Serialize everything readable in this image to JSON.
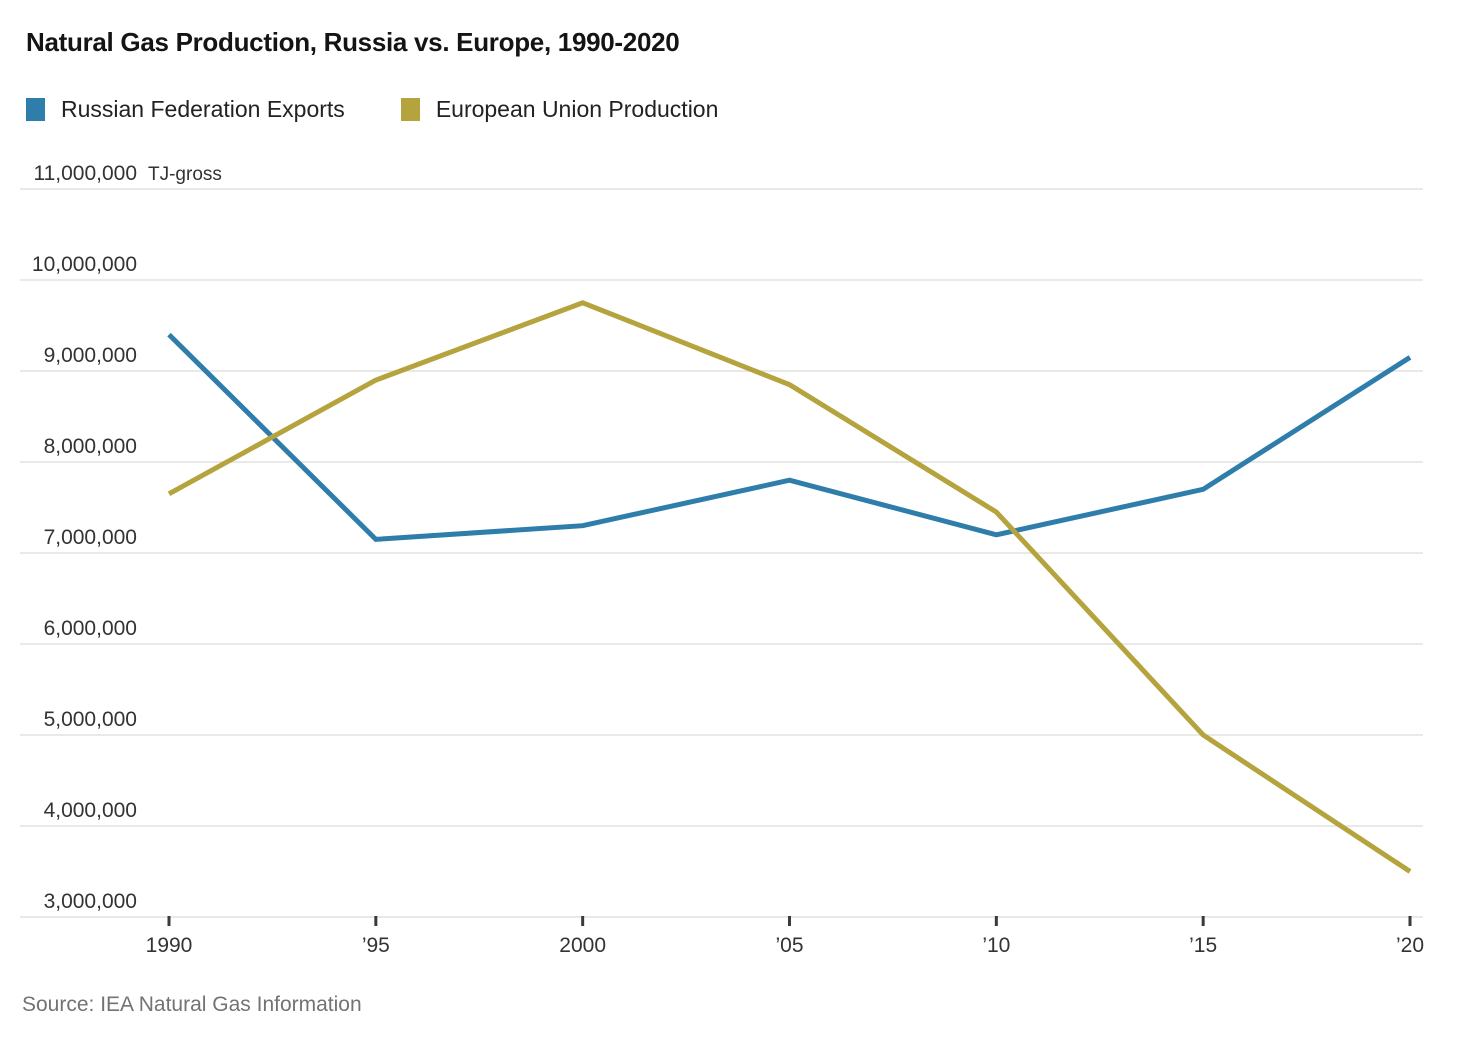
{
  "title": "Natural Gas Production, Russia vs. Europe, 1990-2020",
  "source": "Source: IEA Natural Gas Information",
  "legend": [
    {
      "label": "Russian Federation Exports",
      "color": "#2e7dab"
    },
    {
      "label": "European Union Production",
      "color": "#b5a33d"
    }
  ],
  "chart_data": {
    "type": "line",
    "x": [
      1990,
      1995,
      2000,
      2005,
      2010,
      2015,
      2020
    ],
    "x_tick_labels": [
      "1990",
      "’95",
      "2000",
      "’05",
      "’10",
      "’15",
      "’20"
    ],
    "unit_label": "TJ-gross",
    "ylabel": "",
    "xlabel": "",
    "ylim": [
      3000000,
      11000000
    ],
    "y_tick_values": [
      3000000,
      4000000,
      5000000,
      6000000,
      7000000,
      8000000,
      9000000,
      10000000,
      11000000
    ],
    "y_tick_labels": [
      "3,000,000",
      "4,000,000",
      "5,000,000",
      "6,000,000",
      "7,000,000",
      "8,000,000",
      "9,000,000",
      "10,000,000",
      "11,000,000"
    ],
    "grid": true,
    "legend_position": "top-left",
    "series": [
      {
        "name": "Russian Federation Exports",
        "color": "#2e7dab",
        "values": [
          9400000,
          7150000,
          7300000,
          7800000,
          7200000,
          7700000,
          9150000
        ]
      },
      {
        "name": "European Union Production",
        "color": "#b5a33d",
        "values": [
          7650000,
          8900000,
          9750000,
          8850000,
          7450000,
          5000000,
          3500000
        ]
      }
    ],
    "style": {
      "gridline_color": "#e2e2e2",
      "tick_color": "#3a3a3a",
      "axis_label_color": "#333333",
      "line_width": 5
    }
  }
}
